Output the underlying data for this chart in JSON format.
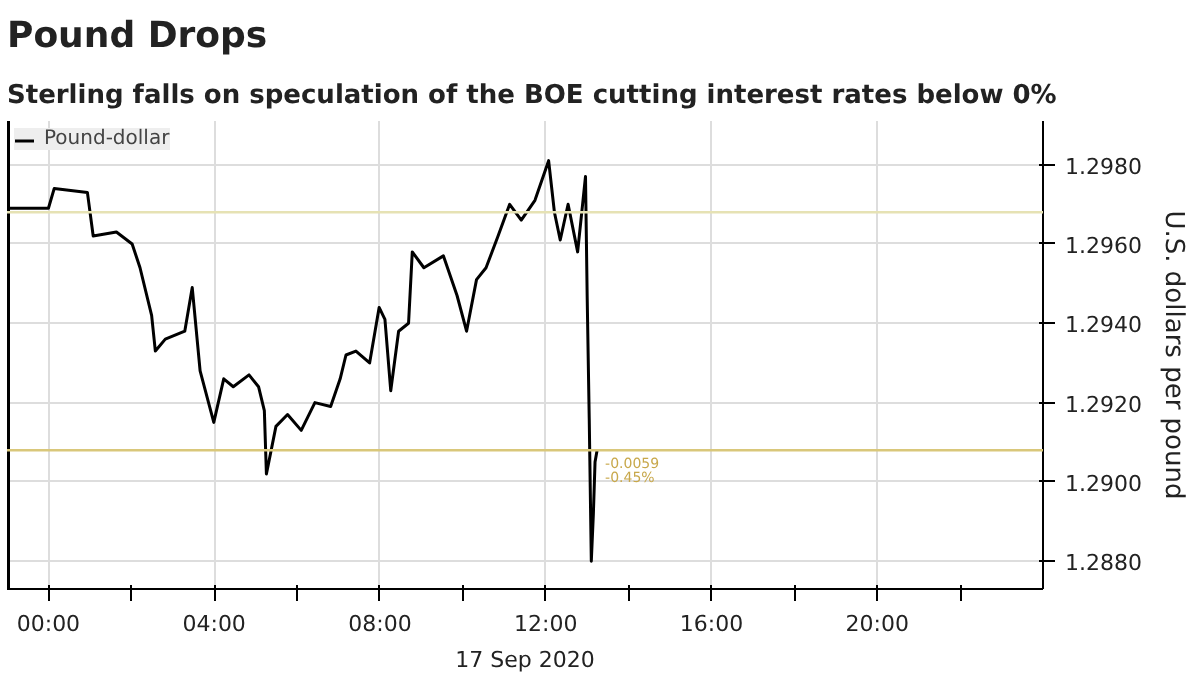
{
  "chart_data": {
    "type": "line",
    "title": "Pound Drops",
    "subtitle": "Sterling falls on speculation of the BOE cutting interest rates below 0%",
    "xlabel": "17 Sep 2020",
    "ylabel": "U.S. dollars per pound",
    "x": [
      -1,
      0,
      0.14,
      0.94,
      1.08,
      1.64,
      2.02,
      2.21,
      2.49,
      2.58,
      2.82,
      3.29,
      3.47,
      3.66,
      3.99,
      4.23,
      4.46,
      4.84,
      5.07,
      5.21,
      5.26,
      5.49,
      5.77,
      6.1,
      6.43,
      6.81,
      7.04,
      7.18,
      7.42,
      7.75,
      7.98,
      8.12,
      8.26,
      8.45,
      8.69,
      8.78,
      9.06,
      9.53,
      9.86,
      10.09,
      10.33,
      10.56,
      10.85,
      11.13,
      11.41,
      11.74,
      12.07,
      12.21,
      12.35,
      12.54,
      12.77,
      12.96,
      13.0,
      13.05,
      13.1,
      13.15,
      13.19,
      13.24
    ],
    "series": [
      {
        "name": "Pound-dollar",
        "color": "#000000",
        "values": [
          1.2969,
          1.2969,
          1.2974,
          1.2973,
          1.2962,
          1.2963,
          1.296,
          1.2954,
          1.2942,
          1.2933,
          1.2936,
          1.2938,
          1.2949,
          1.2928,
          1.2915,
          1.2926,
          1.2924,
          1.2927,
          1.2924,
          1.2918,
          1.2902,
          1.2914,
          1.2917,
          1.2913,
          1.292,
          1.2919,
          1.2926,
          1.2932,
          1.2933,
          1.293,
          1.2944,
          1.2941,
          1.2923,
          1.2938,
          1.294,
          1.2958,
          1.2954,
          1.2957,
          1.2947,
          1.2938,
          1.2951,
          1.2954,
          1.2962,
          1.297,
          1.2966,
          1.2971,
          1.2981,
          1.2968,
          1.2961,
          1.297,
          1.2958,
          1.2977,
          1.2947,
          1.2916,
          1.288,
          1.2892,
          1.2905,
          1.2908
        ]
      }
    ],
    "xlim": [
      -1,
      24
    ],
    "ylim": [
      1.2873,
      1.2991
    ],
    "xticks": [
      {
        "value": 0,
        "label": "00:00"
      },
      {
        "value": 2,
        "label": null
      },
      {
        "value": 4,
        "label": "04:00"
      },
      {
        "value": 6,
        "label": null
      },
      {
        "value": 8,
        "label": "08:00"
      },
      {
        "value": 10,
        "label": null
      },
      {
        "value": 12,
        "label": "12:00"
      },
      {
        "value": 14,
        "label": null
      },
      {
        "value": 16,
        "label": "16:00"
      },
      {
        "value": 18,
        "label": null
      },
      {
        "value": 20,
        "label": "20:00"
      },
      {
        "value": 22,
        "label": null
      }
    ],
    "yticks": [
      {
        "value": 1.288,
        "label": "1.2880"
      },
      {
        "value": 1.29,
        "label": "1.2900"
      },
      {
        "value": 1.292,
        "label": "1.2920"
      },
      {
        "value": 1.294,
        "label": "1.2940"
      },
      {
        "value": 1.296,
        "label": "1.2960"
      },
      {
        "value": 1.298,
        "label": "1.2980"
      }
    ],
    "ref_lines": [
      {
        "axis": "y",
        "value": 1.2968,
        "color": "#e6e2b4"
      },
      {
        "axis": "y",
        "value": 1.2908,
        "color": "#d9c77a"
      }
    ],
    "annotations": [
      {
        "text": "-0.0059",
        "x": 13.24,
        "y": 1.2908
      },
      {
        "text": "-0.45%",
        "x": 13.24,
        "y": 1.2908
      }
    ],
    "grid": true,
    "legend": "top left",
    "marker": "none",
    "line_style": "solid"
  }
}
